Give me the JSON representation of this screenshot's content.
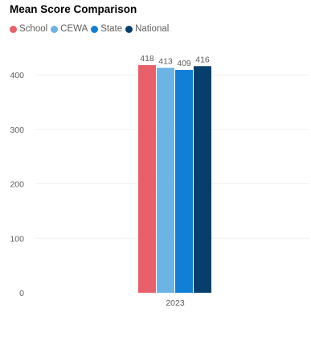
{
  "chart_data": {
    "type": "bar",
    "title": "Mean Score Comparison",
    "categories": [
      "2023"
    ],
    "series": [
      {
        "name": "School",
        "color": "#e8606a",
        "values": [
          418
        ]
      },
      {
        "name": "CEWA",
        "color": "#6cb3e6",
        "values": [
          413
        ]
      },
      {
        "name": "State",
        "color": "#117fd6",
        "values": [
          409
        ]
      },
      {
        "name": "National",
        "color": "#063f6c",
        "values": [
          416
        ]
      }
    ],
    "xlabel": "",
    "ylabel": "",
    "ylim": [
      0,
      440
    ],
    "yticks": [
      0,
      100,
      200,
      300,
      400
    ],
    "grid": true,
    "legend_position": "top-left",
    "data_labels": true
  }
}
